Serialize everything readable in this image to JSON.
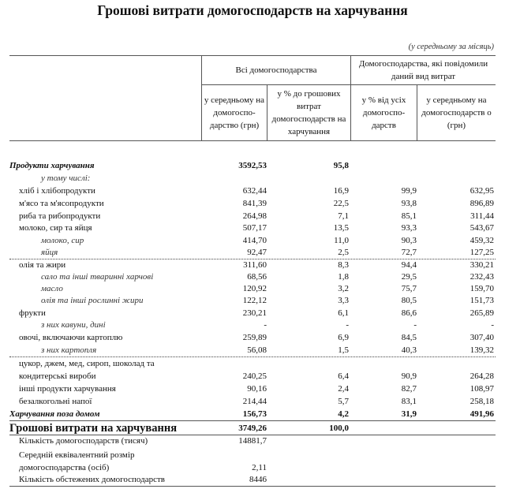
{
  "title": "Грошові витрати домогосподарств на харчування",
  "unit_note": "(у середньому за місяць)",
  "header": {
    "group_all": "Всі домогосподарства",
    "group_reported": "Домогосподарства, які повідомили даний вид витрат",
    "columns": [
      "у середньому на домогоспо-дарство (грн)",
      "у % до грошових витрат домогосподарств на харчування",
      "у % від усіх домогоспо-дарств",
      "у середньому на домогосподарств о (грн)"
    ]
  },
  "rows": [
    {
      "label": "Продукти харчування",
      "values": [
        "3592,53",
        "95,8",
        "",
        ""
      ],
      "style": "bold-italic",
      "indent": 0
    },
    {
      "label": "у тому числі:",
      "values": [
        "",
        "",
        "",
        ""
      ],
      "style": "italic",
      "indent": 2
    },
    {
      "label": "хліб і хлібопродукти",
      "values": [
        "632,44",
        "16,9",
        "99,9",
        "632,95"
      ],
      "style": "normal",
      "indent": 1
    },
    {
      "label": "м'ясо та м'ясопродукти",
      "values": [
        "841,39",
        "22,5",
        "93,8",
        "896,89"
      ],
      "style": "normal",
      "indent": 1
    },
    {
      "label": "риба та рибопродукти",
      "values": [
        "264,98",
        "7,1",
        "85,1",
        "311,44"
      ],
      "style": "normal",
      "indent": 1
    },
    {
      "label": "молоко, сир та яйця",
      "values": [
        "507,17",
        "13,5",
        "93,3",
        "543,67"
      ],
      "style": "normal",
      "indent": 1
    },
    {
      "label": "молоко, сир",
      "values": [
        "414,70",
        "11,0",
        "90,3",
        "459,32"
      ],
      "style": "italic",
      "indent": 2
    },
    {
      "label": "яйця",
      "values": [
        "92,47",
        "2,5",
        "72,7",
        "127,25"
      ],
      "style": "italic",
      "indent": 2,
      "separator": "dotted"
    },
    {
      "label": "олія та жири",
      "values": [
        "311,60",
        "8,3",
        "94,4",
        "330,21"
      ],
      "style": "normal",
      "indent": 1
    },
    {
      "label": "сало та інші тваринні харчові",
      "values": [
        "68,56",
        "1,8",
        "29,5",
        "232,43"
      ],
      "style": "italic",
      "indent": 2
    },
    {
      "label": "масло",
      "values": [
        "120,92",
        "3,2",
        "75,7",
        "159,70"
      ],
      "style": "italic",
      "indent": 2
    },
    {
      "label": "олія та інші рослинні жири",
      "values": [
        "122,12",
        "3,3",
        "80,5",
        "151,73"
      ],
      "style": "italic",
      "indent": 2
    },
    {
      "label": "фрукти",
      "values": [
        "230,21",
        "6,1",
        "86,6",
        "265,89"
      ],
      "style": "normal",
      "indent": 1
    },
    {
      "label": "з них кавуни, дині",
      "values": [
        "-",
        "-",
        "-",
        "-"
      ],
      "style": "italic",
      "indent": 2
    },
    {
      "label": "овочі, включаючи картоплю",
      "values": [
        "259,89",
        "6,9",
        "84,5",
        "307,40"
      ],
      "style": "normal",
      "indent": 1
    },
    {
      "label": "з них картопля",
      "values": [
        "56,08",
        "1,5",
        "40,3",
        "139,32"
      ],
      "style": "italic",
      "indent": 2,
      "separator": "dotted"
    },
    {
      "label": "цукор, джем, мед, сироп, шоколад та",
      "values": [
        "",
        "",
        "",
        ""
      ],
      "style": "normal",
      "indent": 1
    },
    {
      "label": "кондитерські вироби",
      "values": [
        "240,25",
        "6,4",
        "90,9",
        "264,28"
      ],
      "style": "normal",
      "indent": 1
    },
    {
      "label": "інші продукти харчування",
      "values": [
        "90,16",
        "2,4",
        "82,7",
        "108,97"
      ],
      "style": "normal",
      "indent": 1
    },
    {
      "label": "безалкогольні напої",
      "values": [
        "214,44",
        "5,7",
        "83,1",
        "258,18"
      ],
      "style": "normal",
      "indent": 1
    },
    {
      "label": "Харчування поза домом",
      "values": [
        "156,73",
        "4,2",
        "31,9",
        "491,96"
      ],
      "style": "bold-italic",
      "indent": 0,
      "separator": "solid"
    },
    {
      "label": "Грошові витрати на харчування",
      "values": [
        "3749,26",
        "100,0",
        "",
        ""
      ],
      "style": "bold-big",
      "indent": 0,
      "separator": "solid"
    },
    {
      "label": "Кількість домогосподарств (тисяч)",
      "values": [
        "14881,7",
        "",
        "",
        ""
      ],
      "style": "normal",
      "indent": 1
    },
    {
      "label": "Середній еквівалентний розмір",
      "values": [
        "",
        "",
        "",
        ""
      ],
      "style": "normal",
      "indent": 1
    },
    {
      "label": "домогосподарства (осіб)",
      "values": [
        "2,11",
        "",
        "",
        ""
      ],
      "style": "normal",
      "indent": 1
    },
    {
      "label": "Кількість обстежених домогосподарств",
      "values": [
        "8446",
        "",
        "",
        ""
      ],
      "style": "normal",
      "indent": 1,
      "separator": "solid"
    }
  ]
}
